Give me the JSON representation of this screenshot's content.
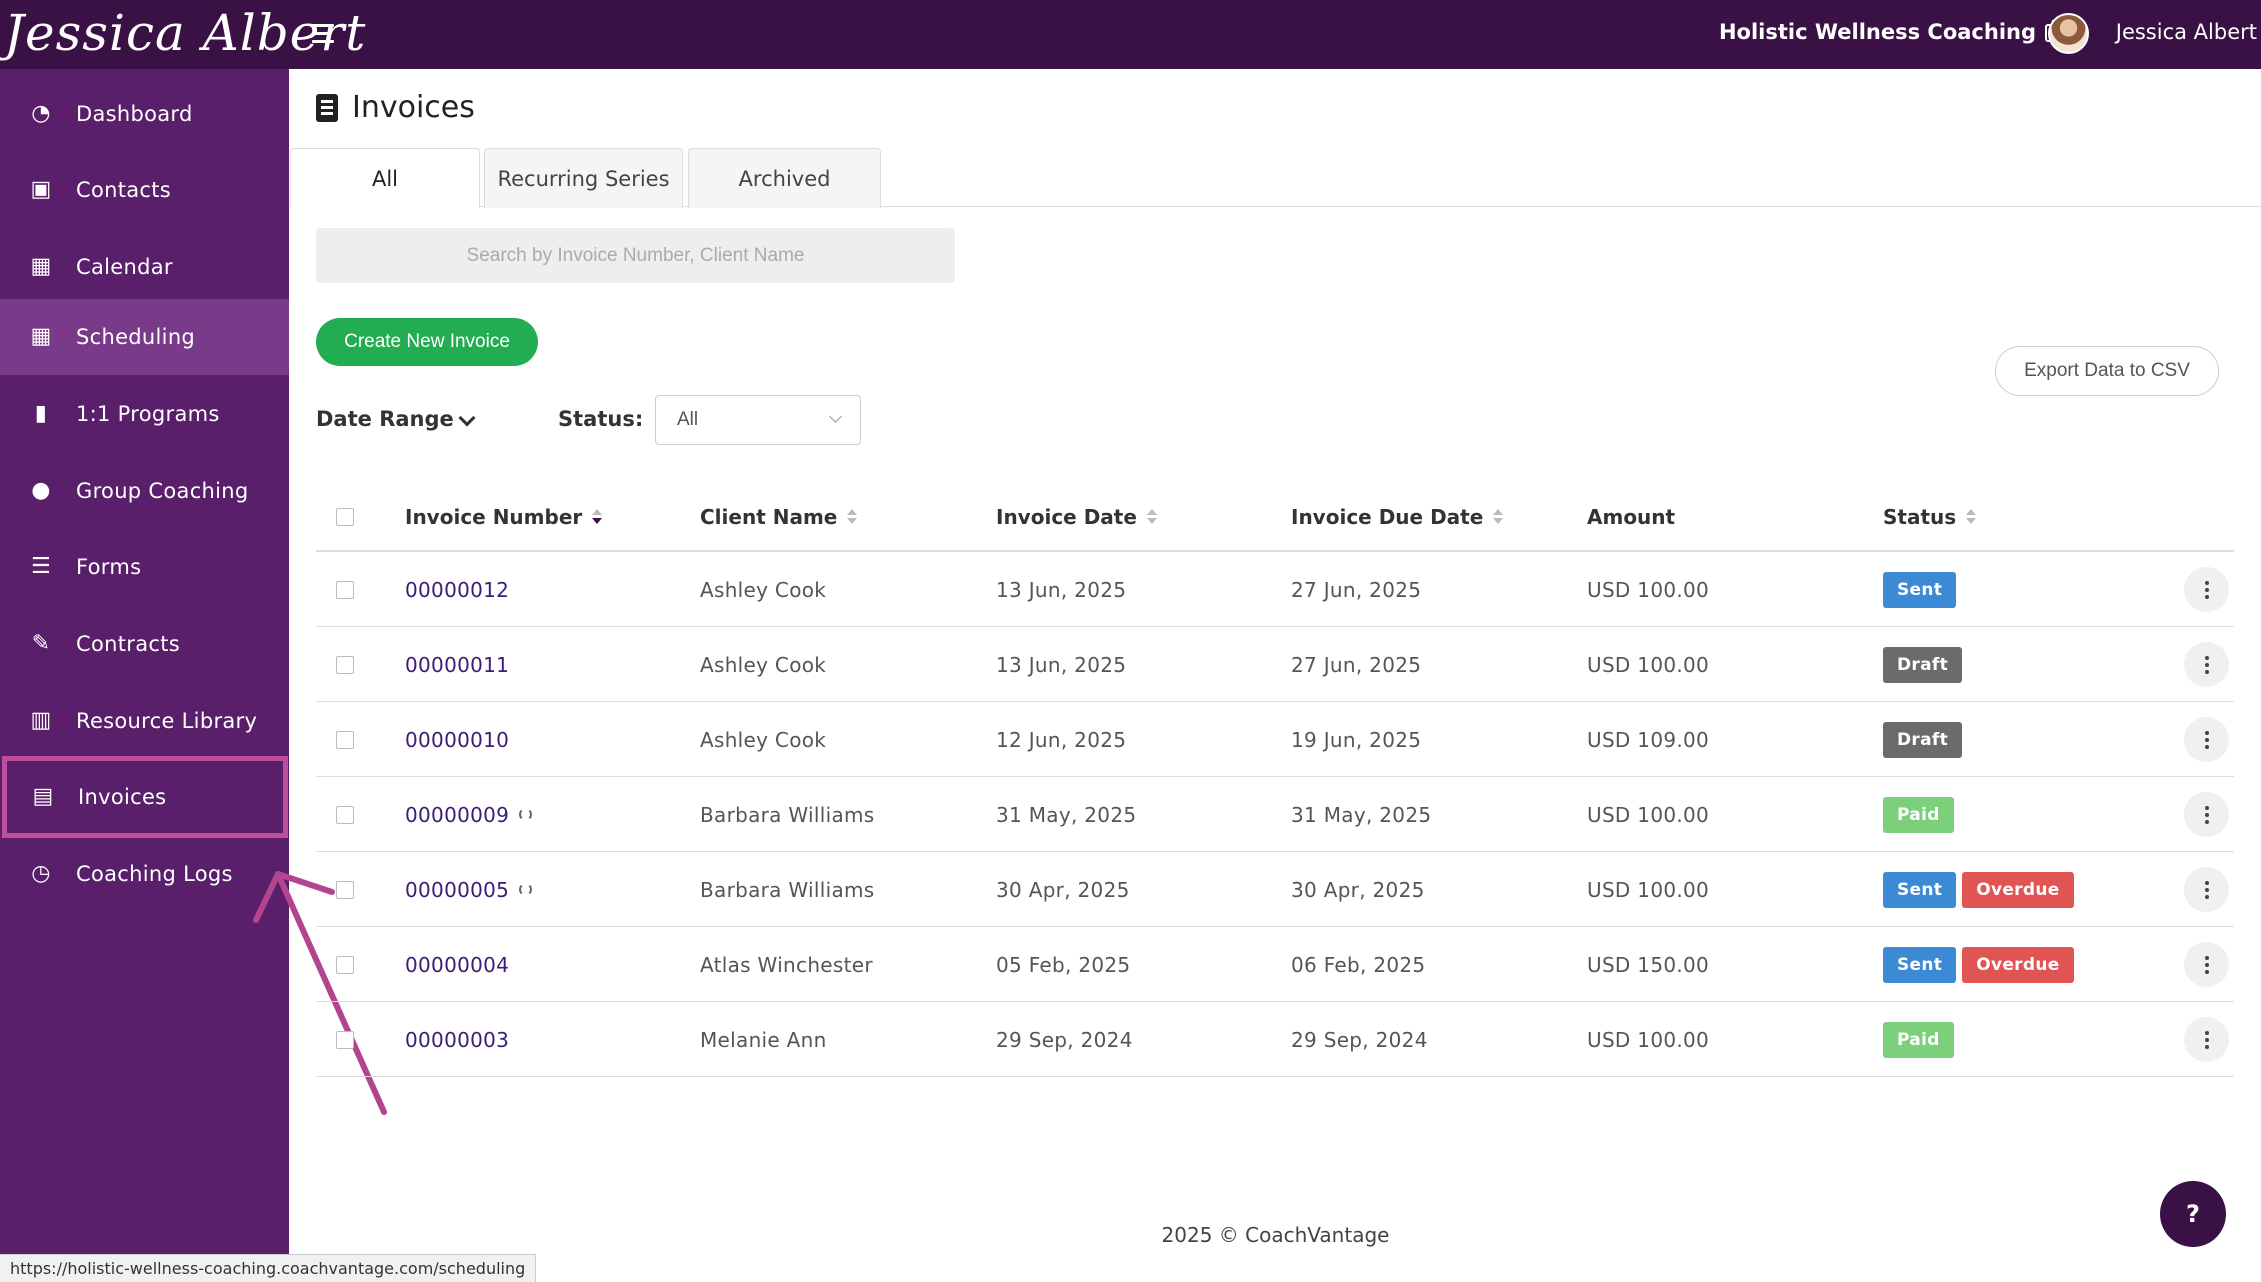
{
  "topbar": {
    "logo_text": "Jessica Albert",
    "org_name": "Holistic Wellness Coaching",
    "user_name": "Jessica Albert"
  },
  "sidebar": {
    "items": [
      {
        "label": "Dashboard",
        "icon": "dashboard-icon"
      },
      {
        "label": "Contacts",
        "icon": "contacts-icon"
      },
      {
        "label": "Calendar",
        "icon": "calendar-icon"
      },
      {
        "label": "Scheduling",
        "icon": "scheduling-icon"
      },
      {
        "label": "1:1 Programs",
        "icon": "book-icon"
      },
      {
        "label": "Group Coaching",
        "icon": "group-icon"
      },
      {
        "label": "Forms",
        "icon": "list-icon"
      },
      {
        "label": "Contracts",
        "icon": "signature-icon"
      },
      {
        "label": "Resource Library",
        "icon": "library-icon"
      },
      {
        "label": "Invoices",
        "icon": "invoice-icon"
      },
      {
        "label": "Coaching Logs",
        "icon": "clock-icon"
      }
    ]
  },
  "main": {
    "title": "Invoices",
    "tabs": [
      {
        "label": "All"
      },
      {
        "label": "Recurring Series"
      },
      {
        "label": "Archived"
      }
    ],
    "search_placeholder": "Search by Invoice Number, Client Name",
    "create_button": "Create New Invoice",
    "export_button": "Export Data to CSV",
    "filters": {
      "date_range_label": "Date Range",
      "status_label": "Status:",
      "status_value": "All"
    },
    "table": {
      "headers": [
        "Invoice Number",
        "Client Name",
        "Invoice Date",
        "Invoice Due Date",
        "Amount",
        "Status"
      ],
      "rows": [
        {
          "number": "00000012",
          "client": "Ashley Cook",
          "date": "13 Jun, 2025",
          "due": "27 Jun, 2025",
          "amount": "USD 100.00",
          "status": [
            "Sent"
          ],
          "recurring": false
        },
        {
          "number": "00000011",
          "client": "Ashley Cook",
          "date": "13 Jun, 2025",
          "due": "27 Jun, 2025",
          "amount": "USD 100.00",
          "status": [
            "Draft"
          ],
          "recurring": false
        },
        {
          "number": "00000010",
          "client": "Ashley Cook",
          "date": "12 Jun, 2025",
          "due": "19 Jun, 2025",
          "amount": "USD 109.00",
          "status": [
            "Draft"
          ],
          "recurring": false
        },
        {
          "number": "00000009",
          "client": "Barbara Williams",
          "date": "31 May, 2025",
          "due": "31 May, 2025",
          "amount": "USD 100.00",
          "status": [
            "Paid"
          ],
          "recurring": true
        },
        {
          "number": "00000005",
          "client": "Barbara Williams",
          "date": "30 Apr, 2025",
          "due": "30 Apr, 2025",
          "amount": "USD 100.00",
          "status": [
            "Sent",
            "Overdue"
          ],
          "recurring": true
        },
        {
          "number": "00000004",
          "client": "Atlas Winchester",
          "date": "05 Feb, 2025",
          "due": "06 Feb, 2025",
          "amount": "USD 150.00",
          "status": [
            "Sent",
            "Overdue"
          ],
          "recurring": false
        },
        {
          "number": "00000003",
          "client": "Melanie Ann",
          "date": "29 Sep, 2024",
          "due": "29 Sep, 2024",
          "amount": "USD 100.00",
          "status": [
            "Paid"
          ],
          "recurring": false
        }
      ]
    }
  },
  "footer": "2025 © CoachVantage",
  "help_label": "?",
  "status_url": "https://holistic-wellness-coaching.coachvantage.com/scheduling",
  "colors": {
    "topbar": "#3a1145",
    "sidebar": "#5a1f6b",
    "primary_button": "#22ad52",
    "highlight": "#c04d9c"
  }
}
